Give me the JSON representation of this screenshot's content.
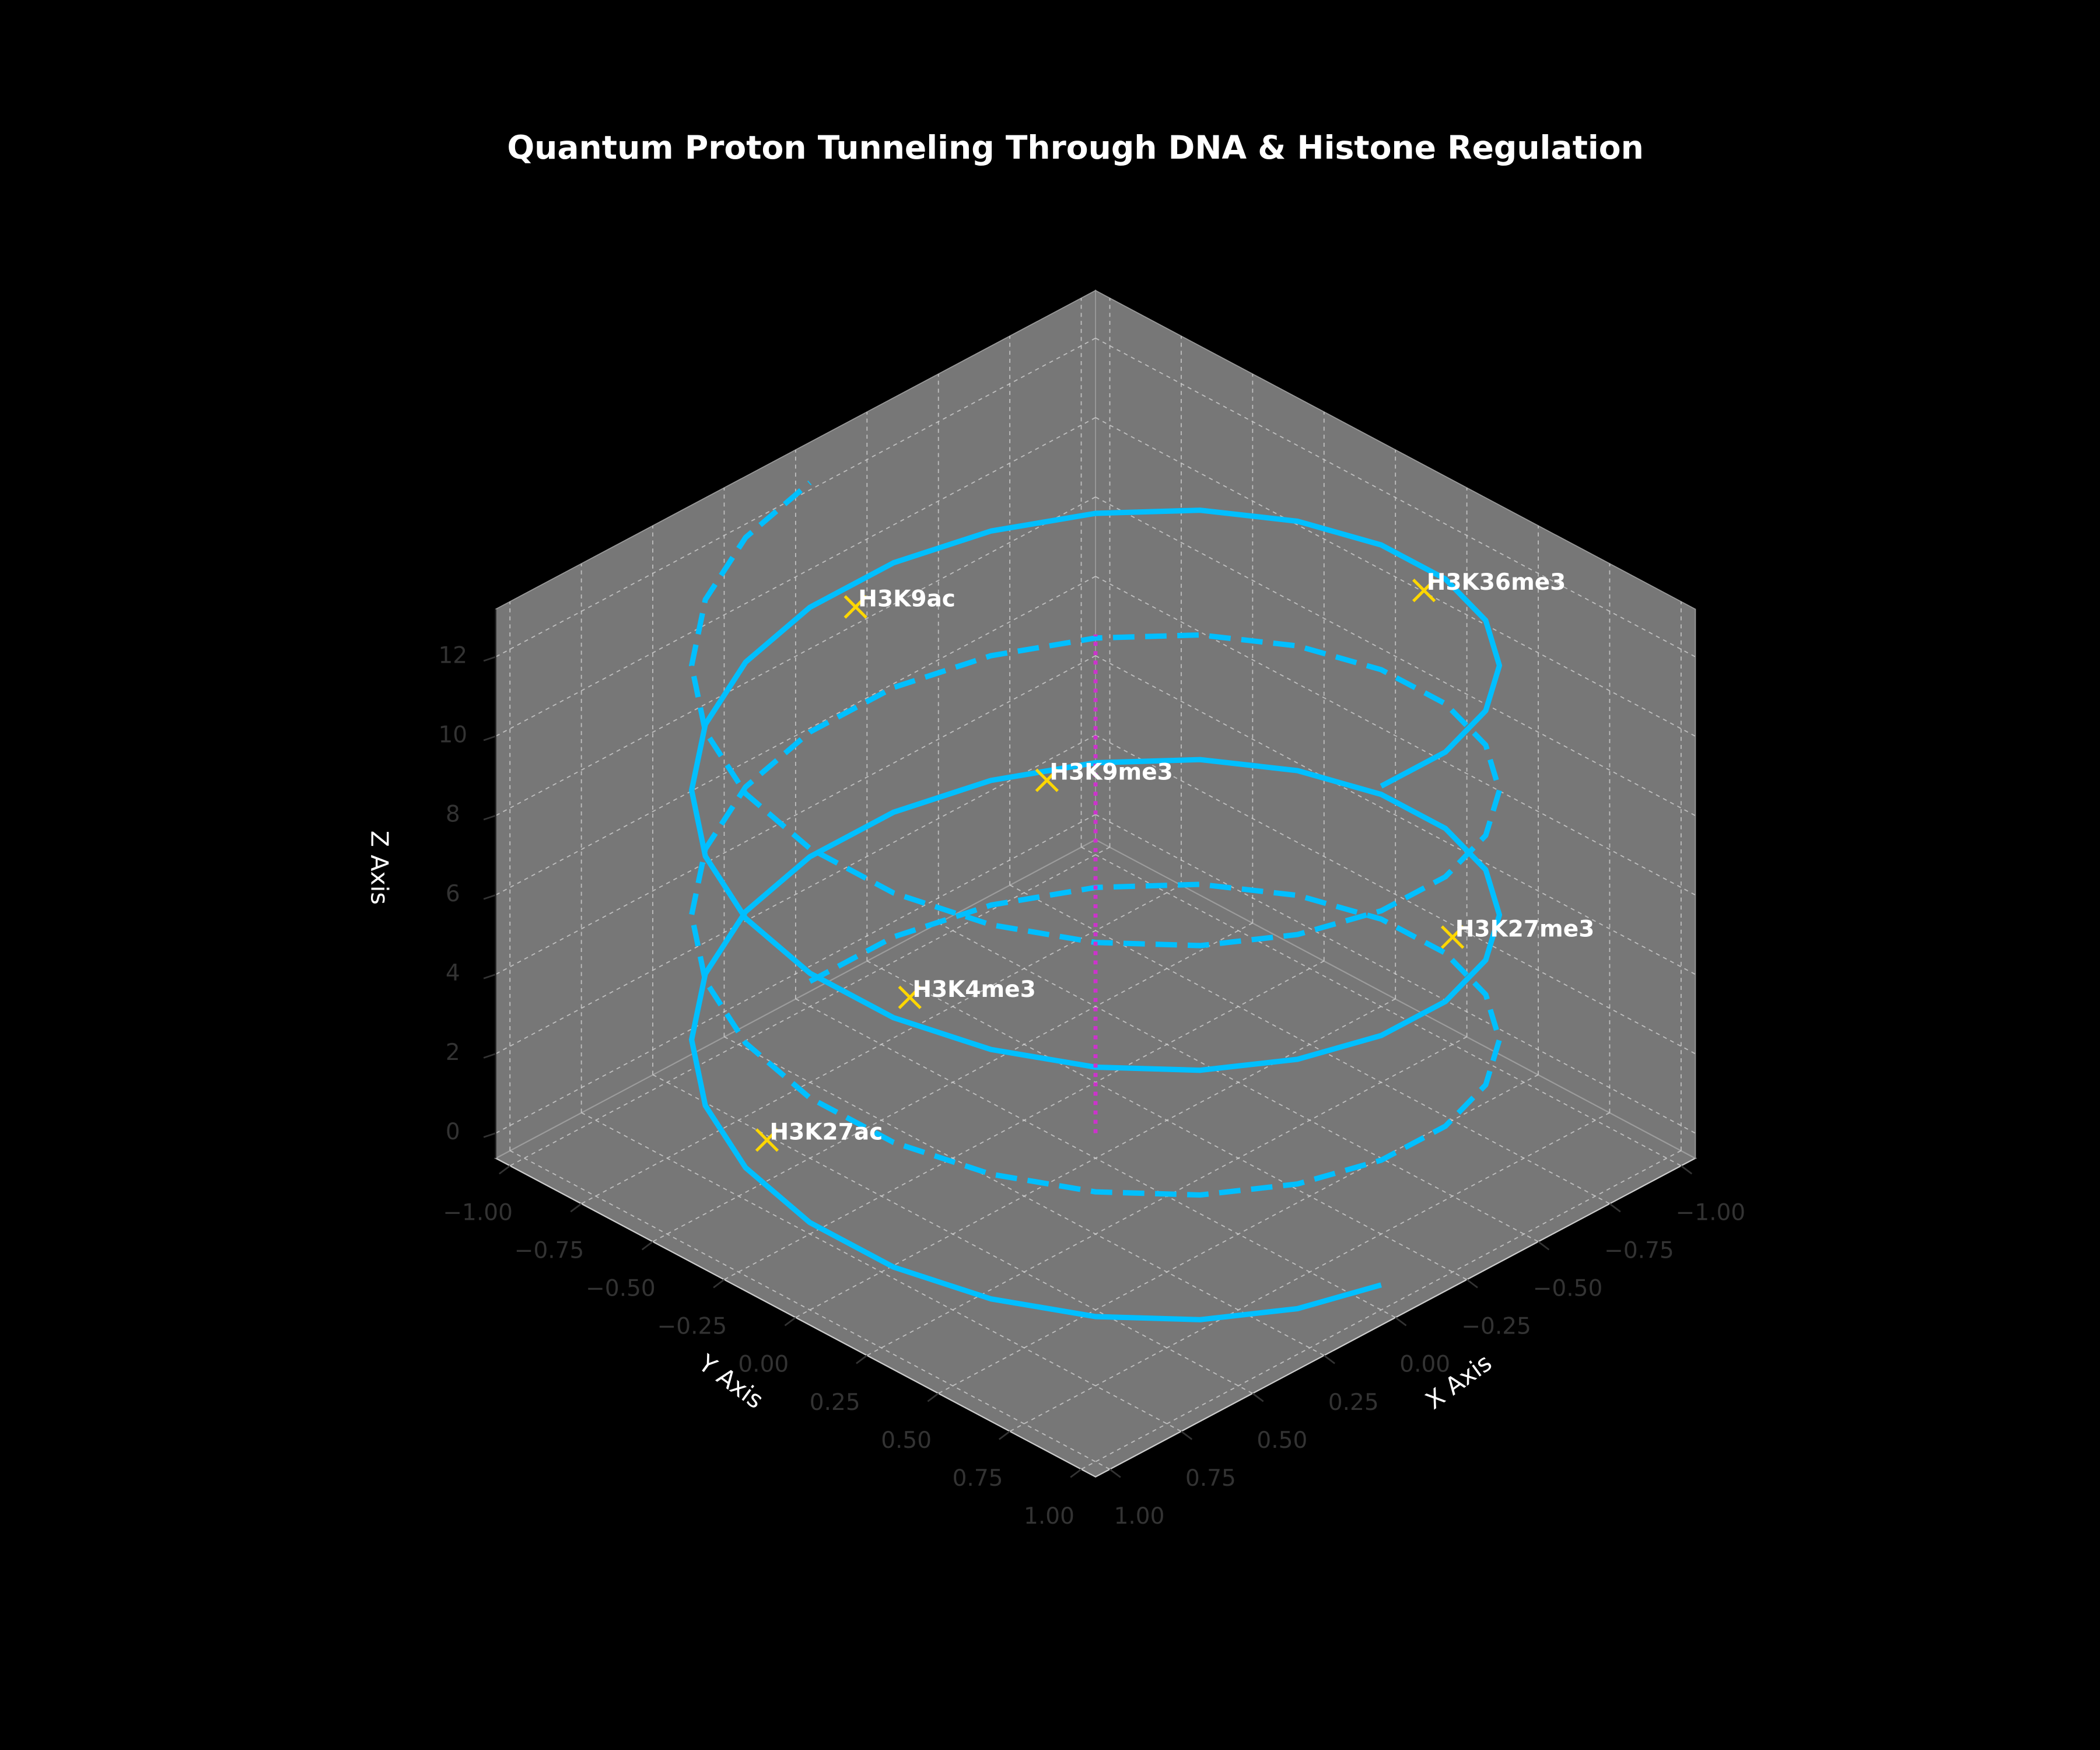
{
  "chart_data": {
    "type": "line3d",
    "title": "Quantum Proton Tunneling Through DNA & Histone Regulation",
    "x_label": "X Axis",
    "y_label": "Y Axis",
    "z_label": "Z Axis",
    "xlim": [
      -1.05,
      1.05
    ],
    "ylim": [
      -1.05,
      1.05
    ],
    "zlim": [
      -0.63,
      13.2
    ],
    "xticks": [
      {
        "value": -1,
        "label": "−1.00"
      },
      {
        "value": -0.75,
        "label": "−0.75"
      },
      {
        "value": -0.5,
        "label": "−0.50"
      },
      {
        "value": -0.25,
        "label": "−0.25"
      },
      {
        "value": 0,
        "label": "0.00"
      },
      {
        "value": 0.25,
        "label": "0.25"
      },
      {
        "value": 0.5,
        "label": "0.50"
      },
      {
        "value": 0.75,
        "label": "0.75"
      },
      {
        "value": 1,
        "label": "1.00"
      }
    ],
    "yticks": [
      {
        "value": -1,
        "label": "−1.00"
      },
      {
        "value": -0.75,
        "label": "−0.75"
      },
      {
        "value": -0.5,
        "label": "−0.50"
      },
      {
        "value": -0.25,
        "label": "−0.25"
      },
      {
        "value": 0,
        "label": "0.00"
      },
      {
        "value": 0.25,
        "label": "0.25"
      },
      {
        "value": 0.5,
        "label": "0.50"
      },
      {
        "value": 0.75,
        "label": "0.75"
      },
      {
        "value": 1,
        "label": "1.00"
      }
    ],
    "zticks": [
      0,
      2,
      4,
      6,
      8,
      10,
      12
    ],
    "grid": true,
    "pane_color": "#777777",
    "series": [
      {
        "color": "#00bfff",
        "style": "solid",
        "x": [
          0,
          0.259,
          0.5,
          0.707,
          0.866,
          0.966,
          1,
          0.966,
          0.866,
          0.707,
          0.5,
          0.259,
          0,
          -0.259,
          -0.5,
          -0.707,
          -0.866,
          -0.966,
          -1,
          -0.966,
          -0.866,
          -0.707,
          -0.5,
          -0.259,
          0,
          0.259,
          0.5,
          0.707,
          0.866,
          0.966,
          1,
          0.966,
          0.866,
          0.707,
          0.5,
          0.259,
          0,
          -0.259,
          -0.5,
          -0.707,
          -0.866,
          -0.966,
          -1,
          -0.966,
          -0.866,
          -0.707,
          -0.5,
          -0.259,
          0
        ],
        "y": [
          1,
          0.966,
          0.866,
          0.707,
          0.5,
          0.259,
          0,
          -0.259,
          -0.5,
          -0.707,
          -0.866,
          -0.966,
          -1,
          -0.966,
          -0.866,
          -0.707,
          -0.5,
          -0.259,
          0,
          0.259,
          0.5,
          0.707,
          0.866,
          0.966,
          1,
          0.966,
          0.866,
          0.707,
          0.5,
          0.259,
          0,
          -0.259,
          -0.5,
          -0.707,
          -0.866,
          -0.966,
          -1,
          -0.966,
          -0.866,
          -0.707,
          -0.5,
          -0.259,
          0,
          0.259,
          0.5,
          0.707,
          0.866,
          0.966,
          1
        ],
        "z": [
          0,
          0.262,
          0.524,
          0.785,
          1.047,
          1.309,
          1.571,
          1.833,
          2.094,
          2.356,
          2.618,
          2.88,
          3.142,
          3.403,
          3.665,
          3.927,
          4.189,
          4.451,
          4.712,
          4.974,
          5.236,
          5.498,
          5.76,
          6.021,
          6.283,
          6.545,
          6.807,
          7.069,
          7.33,
          7.592,
          7.854,
          8.116,
          8.378,
          8.639,
          8.901,
          9.163,
          9.425,
          9.687,
          9.948,
          10.21,
          10.472,
          10.734,
          10.996,
          11.257,
          11.519,
          11.781,
          12.043,
          12.305,
          12.566
        ]
      },
      {
        "color": "#00bfff",
        "style": "dashed",
        "x": [
          0,
          -0.259,
          -0.5,
          -0.707,
          -0.866,
          -0.966,
          -1,
          -0.966,
          -0.866,
          -0.707,
          -0.5,
          -0.259,
          0,
          0.259,
          0.5,
          0.707,
          0.866,
          0.966,
          1,
          0.966,
          0.866,
          0.707,
          0.5,
          0.259,
          0,
          -0.259,
          -0.5,
          -0.707,
          -0.866,
          -0.966,
          -1,
          -0.966,
          -0.866,
          -0.707,
          -0.5,
          -0.259,
          0,
          0.259,
          0.5,
          0.707,
          0.866,
          0.966,
          1,
          0.966,
          0.866,
          0.707,
          0.5,
          0.259,
          0
        ],
        "y": [
          -1,
          -0.966,
          -0.866,
          -0.707,
          -0.5,
          -0.259,
          0,
          0.259,
          0.5,
          0.707,
          0.866,
          0.966,
          1,
          0.966,
          0.866,
          0.707,
          0.5,
          0.259,
          0,
          -0.259,
          -0.5,
          -0.707,
          -0.866,
          -0.966,
          -1,
          -0.966,
          -0.866,
          -0.707,
          -0.5,
          -0.259,
          0,
          0.259,
          0.5,
          0.707,
          0.866,
          0.966,
          1,
          0.966,
          0.866,
          0.707,
          0.5,
          0.259,
          0,
          -0.259,
          -0.5,
          -0.707,
          -0.866,
          -0.966,
          -1
        ],
        "z": [
          0,
          0.262,
          0.524,
          0.785,
          1.047,
          1.309,
          1.571,
          1.833,
          2.094,
          2.356,
          2.618,
          2.88,
          3.142,
          3.403,
          3.665,
          3.927,
          4.189,
          4.451,
          4.712,
          4.974,
          5.236,
          5.498,
          5.76,
          6.021,
          6.283,
          6.545,
          6.807,
          7.069,
          7.33,
          7.592,
          7.854,
          8.116,
          8.378,
          8.639,
          8.901,
          9.163,
          9.425,
          9.687,
          9.948,
          10.21,
          10.472,
          10.734,
          10.996,
          11.257,
          11.519,
          11.781,
          12.043,
          12.305,
          12.566
        ]
      },
      {
        "color": "#cc33cc",
        "style": "dotted",
        "x": [
          0,
          0
        ],
        "y": [
          0,
          0
        ],
        "z": [
          0,
          12.566
        ]
      }
    ],
    "markers": {
      "color": "#ffd700",
      "labels": [
        "H3K27ac",
        "H3K4me3",
        "H3K9me3",
        "H3K27me3",
        "H3K9ac",
        "H3K36me3"
      ],
      "x": [
        0.99,
        0.95,
        -0.62,
        -0.29,
        -0.15,
        -0.99
      ],
      "y": [
        -0.16,
        0.3,
        -0.79,
        0.96,
        -0.99,
        0.16
      ],
      "z": [
        3.0,
        8.2,
        3.5,
        7.5,
        8.9,
        10.5
      ]
    }
  }
}
